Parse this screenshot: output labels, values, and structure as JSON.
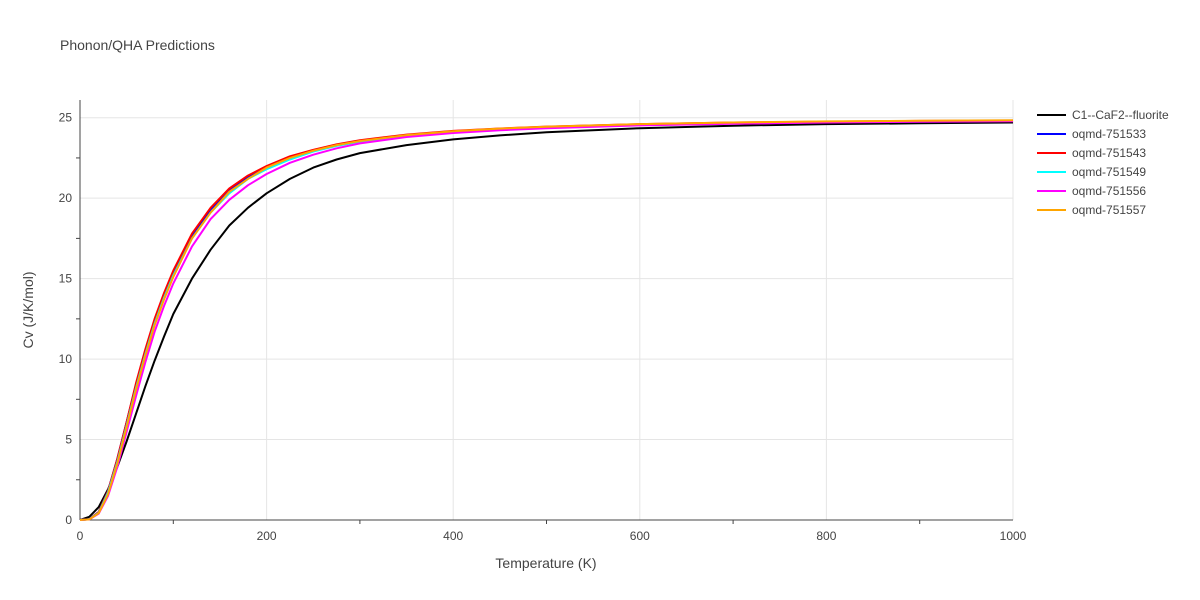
{
  "chart_data": {
    "type": "line",
    "title": "Phonon/QHA Predictions",
    "xlabel": "Temperature (K)",
    "ylabel": "Cv (J/K/mol)",
    "xlim": [
      0,
      1000
    ],
    "ylim": [
      0,
      26.1
    ],
    "xticks": [
      0,
      200,
      400,
      600,
      800,
      1000
    ],
    "yticks": [
      0,
      5,
      10,
      15,
      20,
      25
    ],
    "grid": true,
    "legend_position": "right",
    "series": [
      {
        "name": "C1--CaF2--fluorite",
        "color": "#000000",
        "x": [
          0,
          10,
          20,
          30,
          40,
          50,
          60,
          70,
          80,
          90,
          100,
          120,
          140,
          160,
          180,
          200,
          225,
          250,
          275,
          300,
          350,
          400,
          450,
          500,
          600,
          700,
          800,
          900,
          1000
        ],
        "y": [
          0,
          0.2,
          0.8,
          1.9,
          3.3,
          4.9,
          6.6,
          8.3,
          9.9,
          11.4,
          12.8,
          15.0,
          16.8,
          18.3,
          19.4,
          20.3,
          21.2,
          21.9,
          22.4,
          22.8,
          23.3,
          23.65,
          23.9,
          24.1,
          24.35,
          24.5,
          24.6,
          24.65,
          24.7
        ]
      },
      {
        "name": "oqmd-751533",
        "color": "#0000ff",
        "x": [
          0,
          10,
          20,
          30,
          40,
          50,
          60,
          70,
          80,
          90,
          100,
          120,
          140,
          160,
          180,
          200,
          225,
          250,
          275,
          300,
          350,
          400,
          450,
          500,
          600,
          700,
          800,
          900,
          1000
        ],
        "y": [
          0,
          0.05,
          0.5,
          1.8,
          3.8,
          6.1,
          8.4,
          10.5,
          12.4,
          14.0,
          15.4,
          17.7,
          19.3,
          20.5,
          21.3,
          21.9,
          22.5,
          22.95,
          23.3,
          23.55,
          23.9,
          24.15,
          24.3,
          24.42,
          24.58,
          24.68,
          24.74,
          24.78,
          24.8
        ]
      },
      {
        "name": "oqmd-751543",
        "color": "#ff0000",
        "x": [
          0,
          10,
          20,
          30,
          40,
          50,
          60,
          70,
          80,
          90,
          100,
          120,
          140,
          160,
          180,
          200,
          225,
          250,
          275,
          300,
          350,
          400,
          450,
          500,
          600,
          700,
          800,
          900,
          1000
        ],
        "y": [
          0,
          0.05,
          0.5,
          1.8,
          3.8,
          6.1,
          8.5,
          10.6,
          12.5,
          14.1,
          15.5,
          17.8,
          19.4,
          20.6,
          21.4,
          22.0,
          22.6,
          23.0,
          23.35,
          23.6,
          23.95,
          24.18,
          24.33,
          24.45,
          24.6,
          24.7,
          24.76,
          24.8,
          24.82
        ]
      },
      {
        "name": "oqmd-751549",
        "color": "#00ffff",
        "x": [
          0,
          10,
          20,
          30,
          40,
          50,
          60,
          70,
          80,
          90,
          100,
          120,
          140,
          160,
          180,
          200,
          225,
          250,
          275,
          300,
          350,
          400,
          450,
          500,
          600,
          700,
          800,
          900,
          1000
        ],
        "y": [
          0,
          0.05,
          0.45,
          1.7,
          3.6,
          5.9,
          8.2,
          10.3,
          12.2,
          13.8,
          15.2,
          17.5,
          19.1,
          20.3,
          21.2,
          21.8,
          22.4,
          22.9,
          23.25,
          23.5,
          23.88,
          24.12,
          24.28,
          24.4,
          24.56,
          24.66,
          24.73,
          24.77,
          24.8
        ]
      },
      {
        "name": "oqmd-751556",
        "color": "#ff00ff",
        "x": [
          0,
          10,
          20,
          30,
          40,
          50,
          60,
          70,
          80,
          90,
          100,
          120,
          140,
          160,
          180,
          200,
          225,
          250,
          275,
          300,
          350,
          400,
          450,
          500,
          600,
          700,
          800,
          900,
          1000
        ],
        "y": [
          0,
          0.04,
          0.4,
          1.5,
          3.3,
          5.5,
          7.7,
          9.8,
          11.7,
          13.3,
          14.7,
          17.0,
          18.7,
          19.9,
          20.8,
          21.5,
          22.2,
          22.7,
          23.1,
          23.4,
          23.8,
          24.05,
          24.22,
          24.35,
          24.52,
          24.63,
          24.7,
          24.75,
          24.78
        ]
      },
      {
        "name": "oqmd-751557",
        "color": "#ffa500",
        "x": [
          0,
          10,
          20,
          30,
          40,
          50,
          60,
          70,
          80,
          90,
          100,
          120,
          140,
          160,
          180,
          200,
          225,
          250,
          275,
          300,
          350,
          400,
          450,
          500,
          600,
          700,
          800,
          900,
          1000
        ],
        "y": [
          0,
          0.04,
          0.42,
          1.6,
          3.5,
          5.8,
          8.1,
          10.2,
          12.1,
          13.7,
          15.1,
          17.5,
          19.1,
          20.4,
          21.2,
          21.9,
          22.5,
          22.95,
          23.3,
          23.55,
          23.92,
          24.16,
          24.32,
          24.44,
          24.6,
          24.7,
          24.77,
          24.81,
          24.84
        ]
      }
    ]
  }
}
